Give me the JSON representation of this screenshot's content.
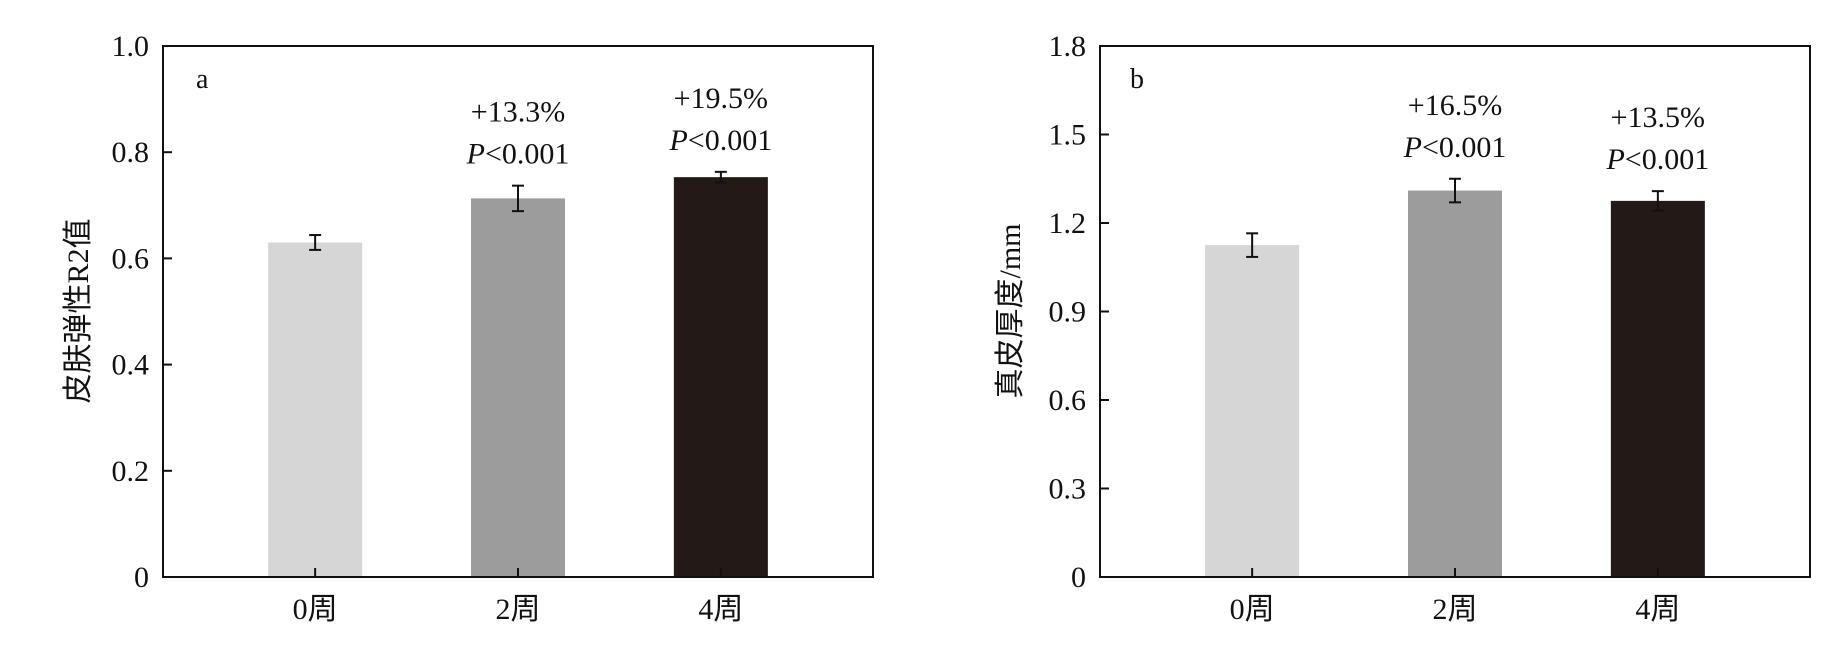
{
  "chart_data": [
    {
      "type": "bar",
      "panel_label": "a",
      "ylabel": "皮肤弹性R2值",
      "xlabel": "",
      "ylim": [
        0,
        1.0
      ],
      "yticks": [
        0,
        0.2,
        0.4,
        0.6,
        0.8,
        1.0
      ],
      "ytick_labels": [
        "0",
        "0.2",
        "0.4",
        "0.6",
        "0.8",
        "1.0"
      ],
      "categories": [
        "0周",
        "2周",
        "4周"
      ],
      "values": [
        0.63,
        0.713,
        0.753
      ],
      "errors": [
        0.014,
        0.024,
        0.01
      ],
      "colors": [
        "#d6d6d6",
        "#9c9c9c",
        "#231a18"
      ],
      "annotations": [
        null,
        {
          "change": "+13.3%",
          "p_label": "P",
          "p_value": "<0.001"
        },
        {
          "change": "+19.5%",
          "p_label": "P",
          "p_value": "<0.001"
        }
      ]
    },
    {
      "type": "bar",
      "panel_label": "b",
      "ylabel": "真皮厚度/mm",
      "xlabel": "",
      "ylim": [
        0,
        1.8
      ],
      "yticks": [
        0,
        0.3,
        0.6,
        0.9,
        1.2,
        1.5,
        1.8
      ],
      "ytick_labels": [
        "0",
        "0.3",
        "0.6",
        "0.9",
        "1.2",
        "1.5",
        "1.8"
      ],
      "categories": [
        "0周",
        "2周",
        "4周"
      ],
      "values": [
        1.125,
        1.31,
        1.275
      ],
      "errors": [
        0.04,
        0.04,
        0.033
      ],
      "colors": [
        "#d6d6d6",
        "#9c9c9c",
        "#231a18"
      ],
      "annotations": [
        null,
        {
          "change": "+16.5%",
          "p_label": "P",
          "p_value": "<0.001"
        },
        {
          "change": "+13.5%",
          "p_label": "P",
          "p_value": "<0.001"
        }
      ]
    }
  ]
}
